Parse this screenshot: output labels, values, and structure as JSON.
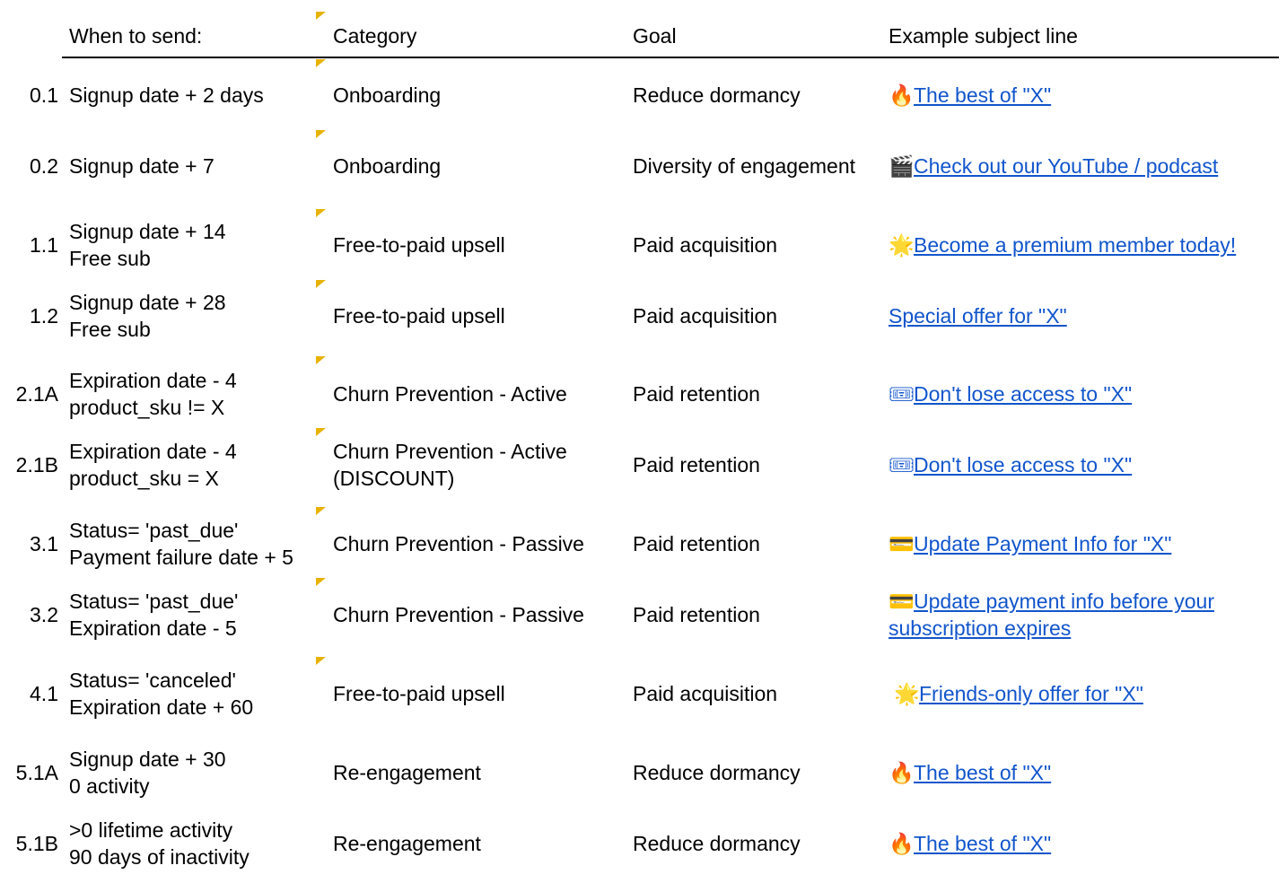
{
  "header": {
    "when": "When to send:",
    "category": "Category",
    "goal": "Goal",
    "subject": "Example subject line"
  },
  "rows": [
    {
      "id": "0.1",
      "when": "Signup date + 2 days",
      "category": "Onboarding",
      "goal": "Reduce dormancy",
      "emoji": "🔥",
      "subject": "The best of \"X\""
    },
    {
      "id": "0.2",
      "when": "Signup date + 7",
      "category": "Onboarding",
      "goal": "Diversity of engagement",
      "emoji": "🎬",
      "subject": "Check out our YouTube / podcast"
    },
    {
      "id": "1.1",
      "when": "Signup date + 14\nFree sub",
      "category": "Free-to-paid upsell",
      "goal": "Paid acquisition",
      "emoji": "🌟",
      "subject": "Become a premium member today!"
    },
    {
      "id": "1.2",
      "when": "Signup date + 28\nFree sub",
      "category": "Free-to-paid upsell",
      "goal": "Paid acquisition",
      "emoji": "",
      "subject": "Special offer for \"X\""
    },
    {
      "id": "2.1A",
      "when": "Expiration date - 4\nproduct_sku != X",
      "category": "Churn Prevention - Active",
      "goal": "Paid retention",
      "emoji": "🎟",
      "subject": "Don't lose access to \"X\""
    },
    {
      "id": "2.1B",
      "when": "Expiration date - 4\nproduct_sku = X",
      "category": "Churn Prevention - Active\n(DISCOUNT)",
      "goal": "Paid retention",
      "emoji": "🎟",
      "subject": "Don't lose access to \"X\""
    },
    {
      "id": "3.1",
      "when": "Status= 'past_due'\nPayment failure date + 5",
      "category": "Churn Prevention - Passive",
      "goal": "Paid retention",
      "emoji": "💳",
      "subject": "Update Payment Info for \"X\""
    },
    {
      "id": "3.2",
      "when": "Status= 'past_due'\nExpiration date - 5",
      "category": "Churn Prevention - Passive",
      "goal": "Paid retention",
      "emoji": "💳",
      "subject": "Update payment info before your subscription expires"
    },
    {
      "id": "4.1",
      "when": "Status= 'canceled'\nExpiration date + 60",
      "category": "Free-to-paid upsell",
      "goal": "Paid acquisition",
      "emoji": "🌟",
      "subject": "Friends-only offer for \"X\""
    },
    {
      "id": "5.1A",
      "when": "Signup date + 30\n0 activity",
      "category": "Re-engagement",
      "goal": "Reduce dormancy",
      "emoji": "🔥",
      "subject": "The best of \"X\""
    },
    {
      "id": "5.1B",
      "when": ">0 lifetime activity\n90 days of inactivity",
      "category": "Re-engagement",
      "goal": "Reduce dormancy",
      "emoji": "🔥",
      "subject": "The best of \"X\""
    }
  ]
}
